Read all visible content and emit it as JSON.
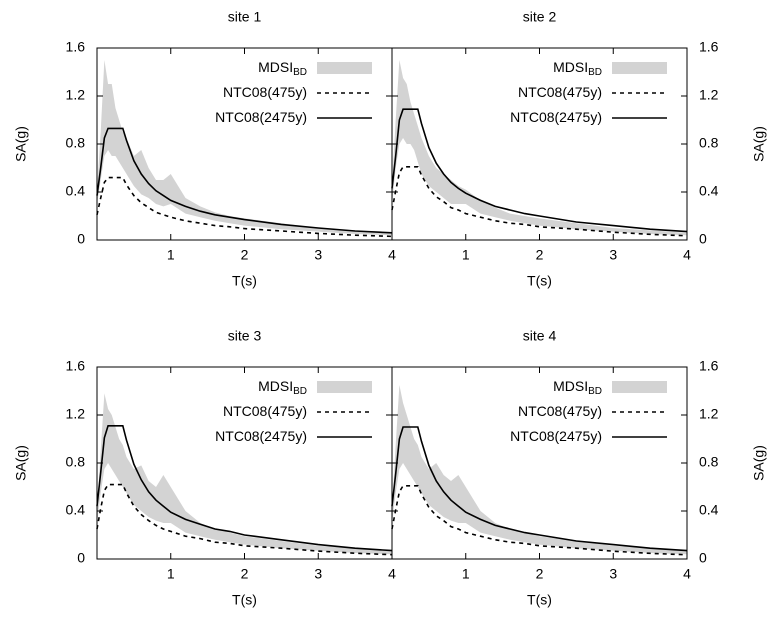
{
  "chart_data": [
    {
      "type": "line",
      "title": "site 1",
      "xlabel": "T(s)",
      "ylabel": "SA(g)",
      "y_axis_side": "left",
      "x": [
        0,
        0.05,
        0.1,
        0.15,
        0.2,
        0.25,
        0.3,
        0.35,
        0.4,
        0.5,
        0.6,
        0.7,
        0.8,
        0.9,
        1.0,
        1.2,
        1.4,
        1.6,
        1.8,
        2.0,
        2.5,
        3.0,
        3.5,
        4.0
      ],
      "xlim": [
        0,
        4
      ],
      "xticks": [
        1,
        2,
        3,
        4
      ],
      "ylim": [
        0,
        1.6
      ],
      "yticks": [
        0,
        0.4,
        0.8,
        1.2,
        1.6
      ],
      "legend": "upper right",
      "series": [
        {
          "name": "MDSI",
          "name_subscript": "BD",
          "kind": "band",
          "color": "#d3d3d3",
          "lower": [
            0.3,
            0.5,
            0.7,
            0.75,
            0.7,
            0.7,
            0.65,
            0.6,
            0.55,
            0.45,
            0.38,
            0.35,
            0.3,
            0.28,
            0.3,
            0.22,
            0.19,
            0.16,
            0.14,
            0.12,
            0.09,
            0.07,
            0.05,
            0.04
          ],
          "upper": [
            0.4,
            0.9,
            1.5,
            1.3,
            1.3,
            1.1,
            1.0,
            0.9,
            0.85,
            0.7,
            0.75,
            0.6,
            0.5,
            0.5,
            0.55,
            0.35,
            0.28,
            0.23,
            0.2,
            0.18,
            0.14,
            0.1,
            0.08,
            0.06
          ]
        },
        {
          "name": "NTC08(475y)",
          "kind": "line",
          "dash": "dashed",
          "color": "#000000",
          "values": [
            0.21,
            0.35,
            0.48,
            0.52,
            0.52,
            0.52,
            0.52,
            0.52,
            0.46,
            0.37,
            0.31,
            0.27,
            0.23,
            0.21,
            0.19,
            0.16,
            0.14,
            0.12,
            0.11,
            0.095,
            0.075,
            0.055,
            0.04,
            0.03
          ]
        },
        {
          "name": "NTC08(2475y)",
          "kind": "line",
          "dash": "solid",
          "color": "#000000",
          "values": [
            0.37,
            0.6,
            0.85,
            0.93,
            0.93,
            0.93,
            0.93,
            0.93,
            0.83,
            0.66,
            0.55,
            0.47,
            0.41,
            0.37,
            0.33,
            0.28,
            0.24,
            0.21,
            0.19,
            0.17,
            0.13,
            0.1,
            0.075,
            0.06
          ]
        }
      ]
    },
    {
      "type": "line",
      "title": "site 2",
      "xlabel": "T(s)",
      "ylabel": "SA(g)",
      "y_axis_side": "right",
      "x": [
        0,
        0.05,
        0.1,
        0.15,
        0.2,
        0.25,
        0.3,
        0.35,
        0.4,
        0.5,
        0.6,
        0.7,
        0.8,
        0.9,
        1.0,
        1.2,
        1.4,
        1.6,
        1.8,
        2.0,
        2.5,
        3.0,
        3.5,
        4.0
      ],
      "xlim": [
        0,
        4
      ],
      "xticks": [
        1,
        2,
        3,
        4
      ],
      "ylim": [
        0,
        1.6
      ],
      "yticks": [
        0,
        0.4,
        0.8,
        1.2,
        1.6
      ],
      "legend": "upper right",
      "series": [
        {
          "name": "MDSI",
          "name_subscript": "BD",
          "kind": "band",
          "color": "#d3d3d3",
          "lower": [
            0.3,
            0.6,
            0.8,
            0.85,
            0.8,
            0.8,
            0.75,
            0.65,
            0.55,
            0.45,
            0.4,
            0.35,
            0.3,
            0.3,
            0.3,
            0.22,
            0.19,
            0.16,
            0.14,
            0.12,
            0.09,
            0.07,
            0.05,
            0.04
          ],
          "upper": [
            0.45,
            1.0,
            1.5,
            1.35,
            1.3,
            1.15,
            1.05,
            0.95,
            0.85,
            0.7,
            0.6,
            0.55,
            0.5,
            0.45,
            0.42,
            0.33,
            0.27,
            0.22,
            0.2,
            0.18,
            0.14,
            0.1,
            0.08,
            0.06
          ]
        },
        {
          "name": "NTC08(475y)",
          "kind": "line",
          "dash": "dashed",
          "color": "#000000",
          "values": [
            0.25,
            0.41,
            0.56,
            0.61,
            0.61,
            0.61,
            0.61,
            0.61,
            0.54,
            0.43,
            0.36,
            0.32,
            0.27,
            0.25,
            0.22,
            0.19,
            0.16,
            0.14,
            0.13,
            0.11,
            0.09,
            0.065,
            0.047,
            0.035
          ]
        },
        {
          "name": "NTC08(2475y)",
          "kind": "line",
          "dash": "solid",
          "color": "#000000",
          "values": [
            0.43,
            0.7,
            1.0,
            1.09,
            1.09,
            1.09,
            1.09,
            1.09,
            0.97,
            0.77,
            0.64,
            0.55,
            0.48,
            0.43,
            0.39,
            0.33,
            0.28,
            0.25,
            0.22,
            0.2,
            0.15,
            0.12,
            0.09,
            0.07
          ]
        }
      ]
    },
    {
      "type": "line",
      "title": "site 3",
      "xlabel": "T(s)",
      "ylabel": "SA(g)",
      "y_axis_side": "left",
      "x": [
        0,
        0.05,
        0.1,
        0.15,
        0.2,
        0.25,
        0.3,
        0.35,
        0.4,
        0.5,
        0.6,
        0.7,
        0.8,
        0.9,
        1.0,
        1.2,
        1.4,
        1.6,
        1.8,
        2.0,
        2.5,
        3.0,
        3.5,
        4.0
      ],
      "xlim": [
        0,
        4
      ],
      "xticks": [
        1,
        2,
        3,
        4
      ],
      "ylim": [
        0,
        1.6
      ],
      "yticks": [
        0,
        0.4,
        0.8,
        1.2,
        1.6
      ],
      "legend": "upper right",
      "series": [
        {
          "name": "MDSI",
          "name_subscript": "BD",
          "kind": "band",
          "color": "#d3d3d3",
          "lower": [
            0.3,
            0.55,
            0.75,
            0.8,
            0.75,
            0.7,
            0.65,
            0.6,
            0.55,
            0.45,
            0.4,
            0.35,
            0.32,
            0.3,
            0.3,
            0.22,
            0.19,
            0.16,
            0.14,
            0.12,
            0.09,
            0.07,
            0.05,
            0.04
          ],
          "upper": [
            0.4,
            0.9,
            1.38,
            1.25,
            1.2,
            1.1,
            1.0,
            0.95,
            0.85,
            0.75,
            0.78,
            0.65,
            0.6,
            0.7,
            0.6,
            0.4,
            0.3,
            0.25,
            0.22,
            0.19,
            0.15,
            0.11,
            0.09,
            0.07
          ]
        },
        {
          "name": "NTC08(475y)",
          "kind": "line",
          "dash": "dashed",
          "color": "#000000",
          "values": [
            0.25,
            0.42,
            0.57,
            0.62,
            0.62,
            0.62,
            0.62,
            0.62,
            0.55,
            0.44,
            0.37,
            0.32,
            0.28,
            0.25,
            0.23,
            0.19,
            0.17,
            0.14,
            0.13,
            0.11,
            0.09,
            0.066,
            0.048,
            0.036
          ]
        },
        {
          "name": "NTC08(2475y)",
          "kind": "line",
          "dash": "solid",
          "color": "#000000",
          "values": [
            0.44,
            0.72,
            1.01,
            1.11,
            1.11,
            1.11,
            1.11,
            1.11,
            0.99,
            0.79,
            0.66,
            0.56,
            0.49,
            0.44,
            0.39,
            0.33,
            0.29,
            0.25,
            0.23,
            0.2,
            0.16,
            0.12,
            0.09,
            0.07
          ]
        }
      ]
    },
    {
      "type": "line",
      "title": "site 4",
      "xlabel": "T(s)",
      "ylabel": "SA(g)",
      "y_axis_side": "right",
      "x": [
        0,
        0.05,
        0.1,
        0.15,
        0.2,
        0.25,
        0.3,
        0.35,
        0.4,
        0.5,
        0.6,
        0.7,
        0.8,
        0.9,
        1.0,
        1.2,
        1.4,
        1.6,
        1.8,
        2.0,
        2.5,
        3.0,
        3.5,
        4.0
      ],
      "xlim": [
        0,
        4
      ],
      "xticks": [
        1,
        2,
        3,
        4
      ],
      "ylim": [
        0,
        1.6
      ],
      "yticks": [
        0,
        0.4,
        0.8,
        1.2,
        1.6
      ],
      "legend": "upper right",
      "series": [
        {
          "name": "MDSI",
          "name_subscript": "BD",
          "kind": "band",
          "color": "#d3d3d3",
          "lower": [
            0.3,
            0.55,
            0.75,
            0.8,
            0.75,
            0.7,
            0.65,
            0.6,
            0.55,
            0.45,
            0.4,
            0.35,
            0.32,
            0.3,
            0.3,
            0.22,
            0.19,
            0.16,
            0.14,
            0.12,
            0.09,
            0.07,
            0.05,
            0.04
          ],
          "upper": [
            0.4,
            0.95,
            1.45,
            1.3,
            1.2,
            1.1,
            1.0,
            0.95,
            0.85,
            0.75,
            0.8,
            0.7,
            0.65,
            0.7,
            0.6,
            0.4,
            0.3,
            0.25,
            0.22,
            0.19,
            0.15,
            0.11,
            0.09,
            0.07
          ]
        },
        {
          "name": "NTC08(475y)",
          "kind": "line",
          "dash": "dashed",
          "color": "#000000",
          "values": [
            0.25,
            0.41,
            0.56,
            0.61,
            0.61,
            0.61,
            0.61,
            0.61,
            0.54,
            0.43,
            0.36,
            0.32,
            0.27,
            0.25,
            0.22,
            0.19,
            0.16,
            0.14,
            0.13,
            0.11,
            0.09,
            0.065,
            0.047,
            0.035
          ]
        },
        {
          "name": "NTC08(2475y)",
          "kind": "line",
          "dash": "solid",
          "color": "#000000",
          "values": [
            0.44,
            0.71,
            1.0,
            1.1,
            1.1,
            1.1,
            1.1,
            1.1,
            0.98,
            0.78,
            0.65,
            0.56,
            0.49,
            0.44,
            0.39,
            0.33,
            0.28,
            0.25,
            0.22,
            0.2,
            0.15,
            0.12,
            0.09,
            0.07
          ]
        }
      ]
    }
  ]
}
